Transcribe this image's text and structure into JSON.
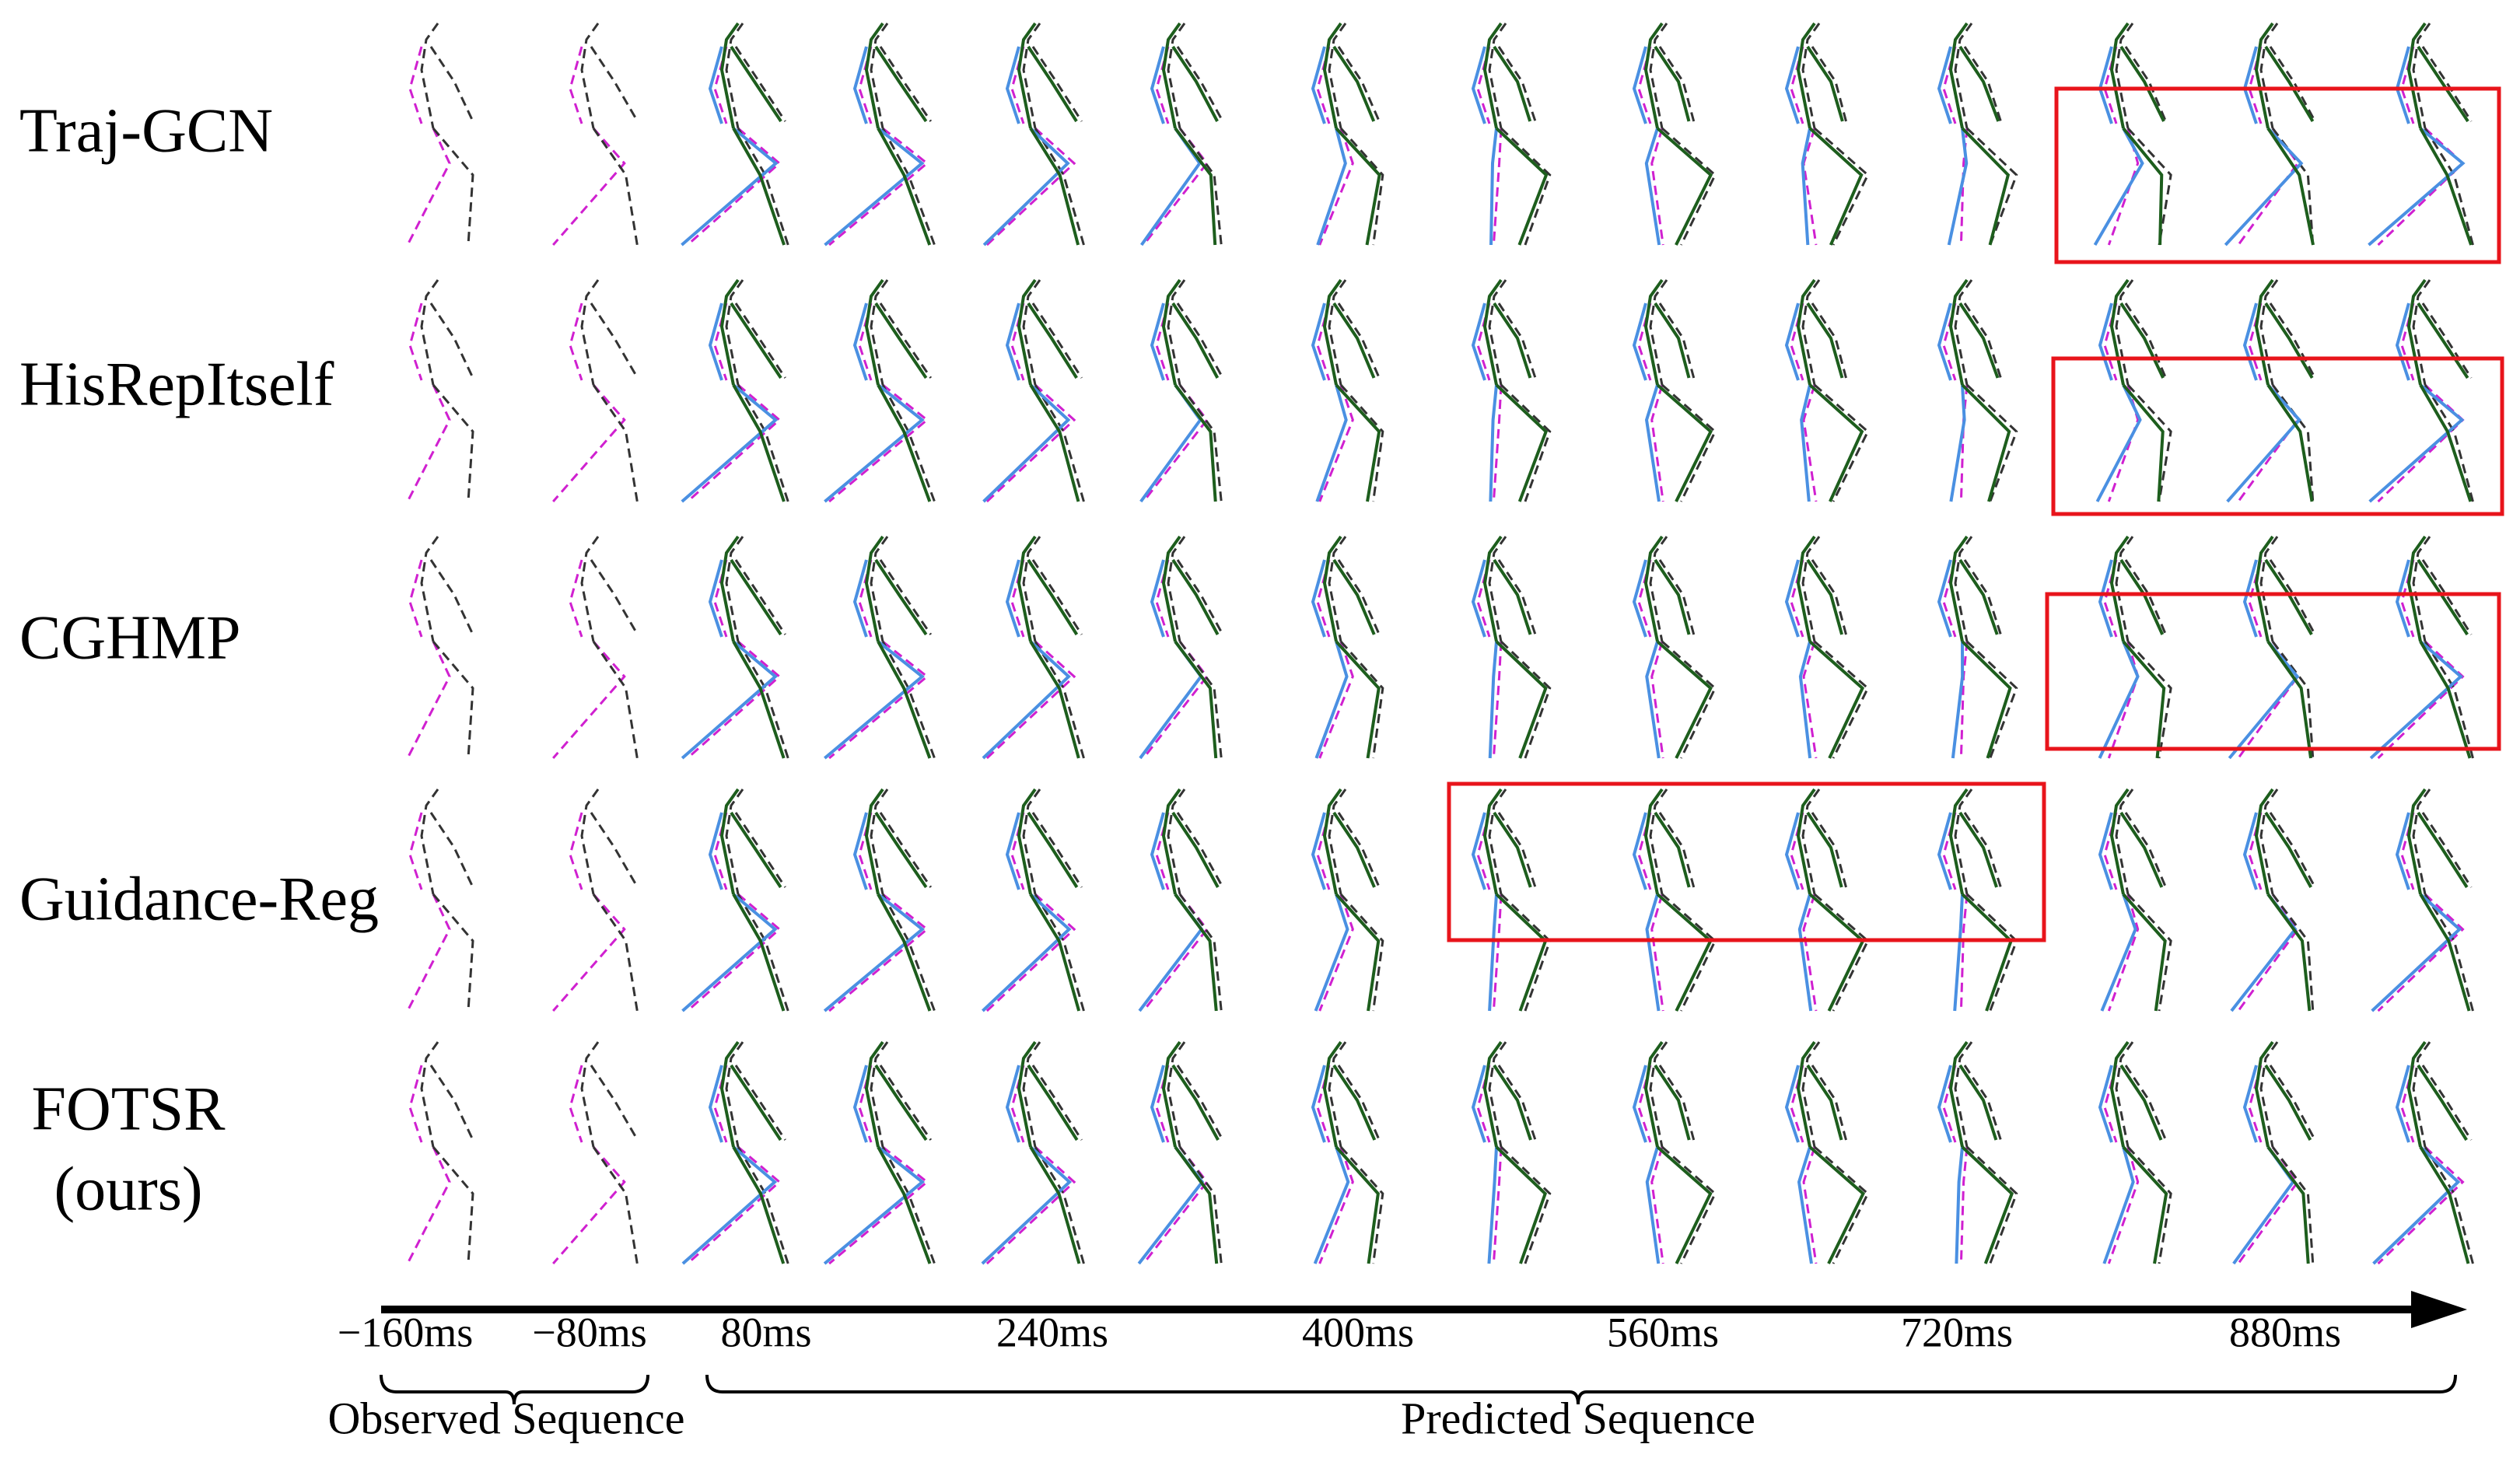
{
  "rows": [
    {
      "label": "Traj-GCN"
    },
    {
      "label": "HisRepItself"
    },
    {
      "label": "CGHMP"
    },
    {
      "label": "Guidance-Reg"
    },
    {
      "label": "FOTSR",
      "note": "(ours)"
    }
  ],
  "timeline": {
    "ticks": [
      "−160ms",
      "−80ms",
      "80ms",
      "240ms",
      "400ms",
      "560ms",
      "720ms",
      "880ms"
    ],
    "observed": "Observed Sequence",
    "predicted": "Predicted Sequence"
  }
}
